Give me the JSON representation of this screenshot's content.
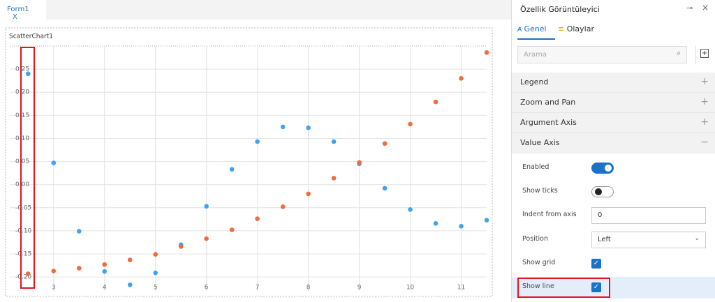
{
  "tab": {
    "label": "Form1",
    "close": "X"
  },
  "chart_data": {
    "type": "scatter",
    "title": "ScatterChart1",
    "x": [
      2.5,
      3,
      3.5,
      4,
      4.5,
      5,
      5.5,
      6,
      6.5,
      7,
      7.5,
      8,
      8.5,
      9,
      9.5,
      10,
      10.5,
      11,
      11.5
    ],
    "series": [
      {
        "color": "#3ea3f2",
        "values": [
          0.24,
          0.047,
          -0.101,
          -0.188,
          -0.217,
          -0.191,
          -0.13,
          -0.047,
          0.033,
          0.093,
          0.125,
          0.123,
          0.093,
          0.045,
          -0.008,
          -0.054,
          -0.084,
          -0.09,
          -0.077
        ]
      },
      {
        "color": "#f26b3a",
        "values": [
          -0.193,
          -0.187,
          -0.181,
          -0.173,
          -0.163,
          -0.151,
          -0.134,
          -0.117,
          -0.098,
          -0.074,
          -0.048,
          -0.02,
          0.014,
          0.048,
          0.089,
          0.131,
          0.179,
          0.23,
          0.286
        ]
      }
    ],
    "xlim": [
      2.14,
      11.5
    ],
    "ylim": [
      -0.23,
      0.3
    ],
    "xticks": [
      3,
      4,
      5,
      6,
      7,
      8,
      9,
      10,
      11
    ],
    "yticks": [
      {
        "value": -0.2,
        "label": "-0.20"
      },
      {
        "value": -0.15,
        "label": "-0.15"
      },
      {
        "value": -0.1,
        "label": "-0.10"
      },
      {
        "value": -0.05,
        "label": "-0.05"
      },
      {
        "value": 0,
        "label": "0.00"
      },
      {
        "value": 0.05,
        "label": "0.05"
      },
      {
        "value": 0.1,
        "label": "0.10"
      },
      {
        "value": 0.15,
        "label": "0.15"
      },
      {
        "value": 0.2,
        "label": "0.20"
      },
      {
        "value": 0.25,
        "label": "0.25"
      }
    ],
    "grid": true
  },
  "panel": {
    "title": "Özellik Görüntüleyici",
    "tabs": [
      "Genel",
      "Olaylar"
    ],
    "search_placeholder": "Arama",
    "sections": [
      {
        "title": "Legend",
        "expanded": false
      },
      {
        "title": "Zoom and Pan",
        "expanded": false
      },
      {
        "title": "Argument Axis",
        "expanded": false
      },
      {
        "title": "Value Axis",
        "expanded": true
      }
    ],
    "properties": [
      {
        "label": "Enabled",
        "control": "toggle",
        "on": true
      },
      {
        "label": "Show ticks",
        "control": "toggle",
        "on": false
      },
      {
        "label": "Indent from axis",
        "control": "input",
        "value": 0
      },
      {
        "label": "Position",
        "control": "select",
        "value": "Left"
      },
      {
        "label": "Show grid",
        "control": "checkbox",
        "on": true
      },
      {
        "label": "Show line",
        "control": "checkbox",
        "on": true,
        "highlighted": true
      }
    ]
  }
}
